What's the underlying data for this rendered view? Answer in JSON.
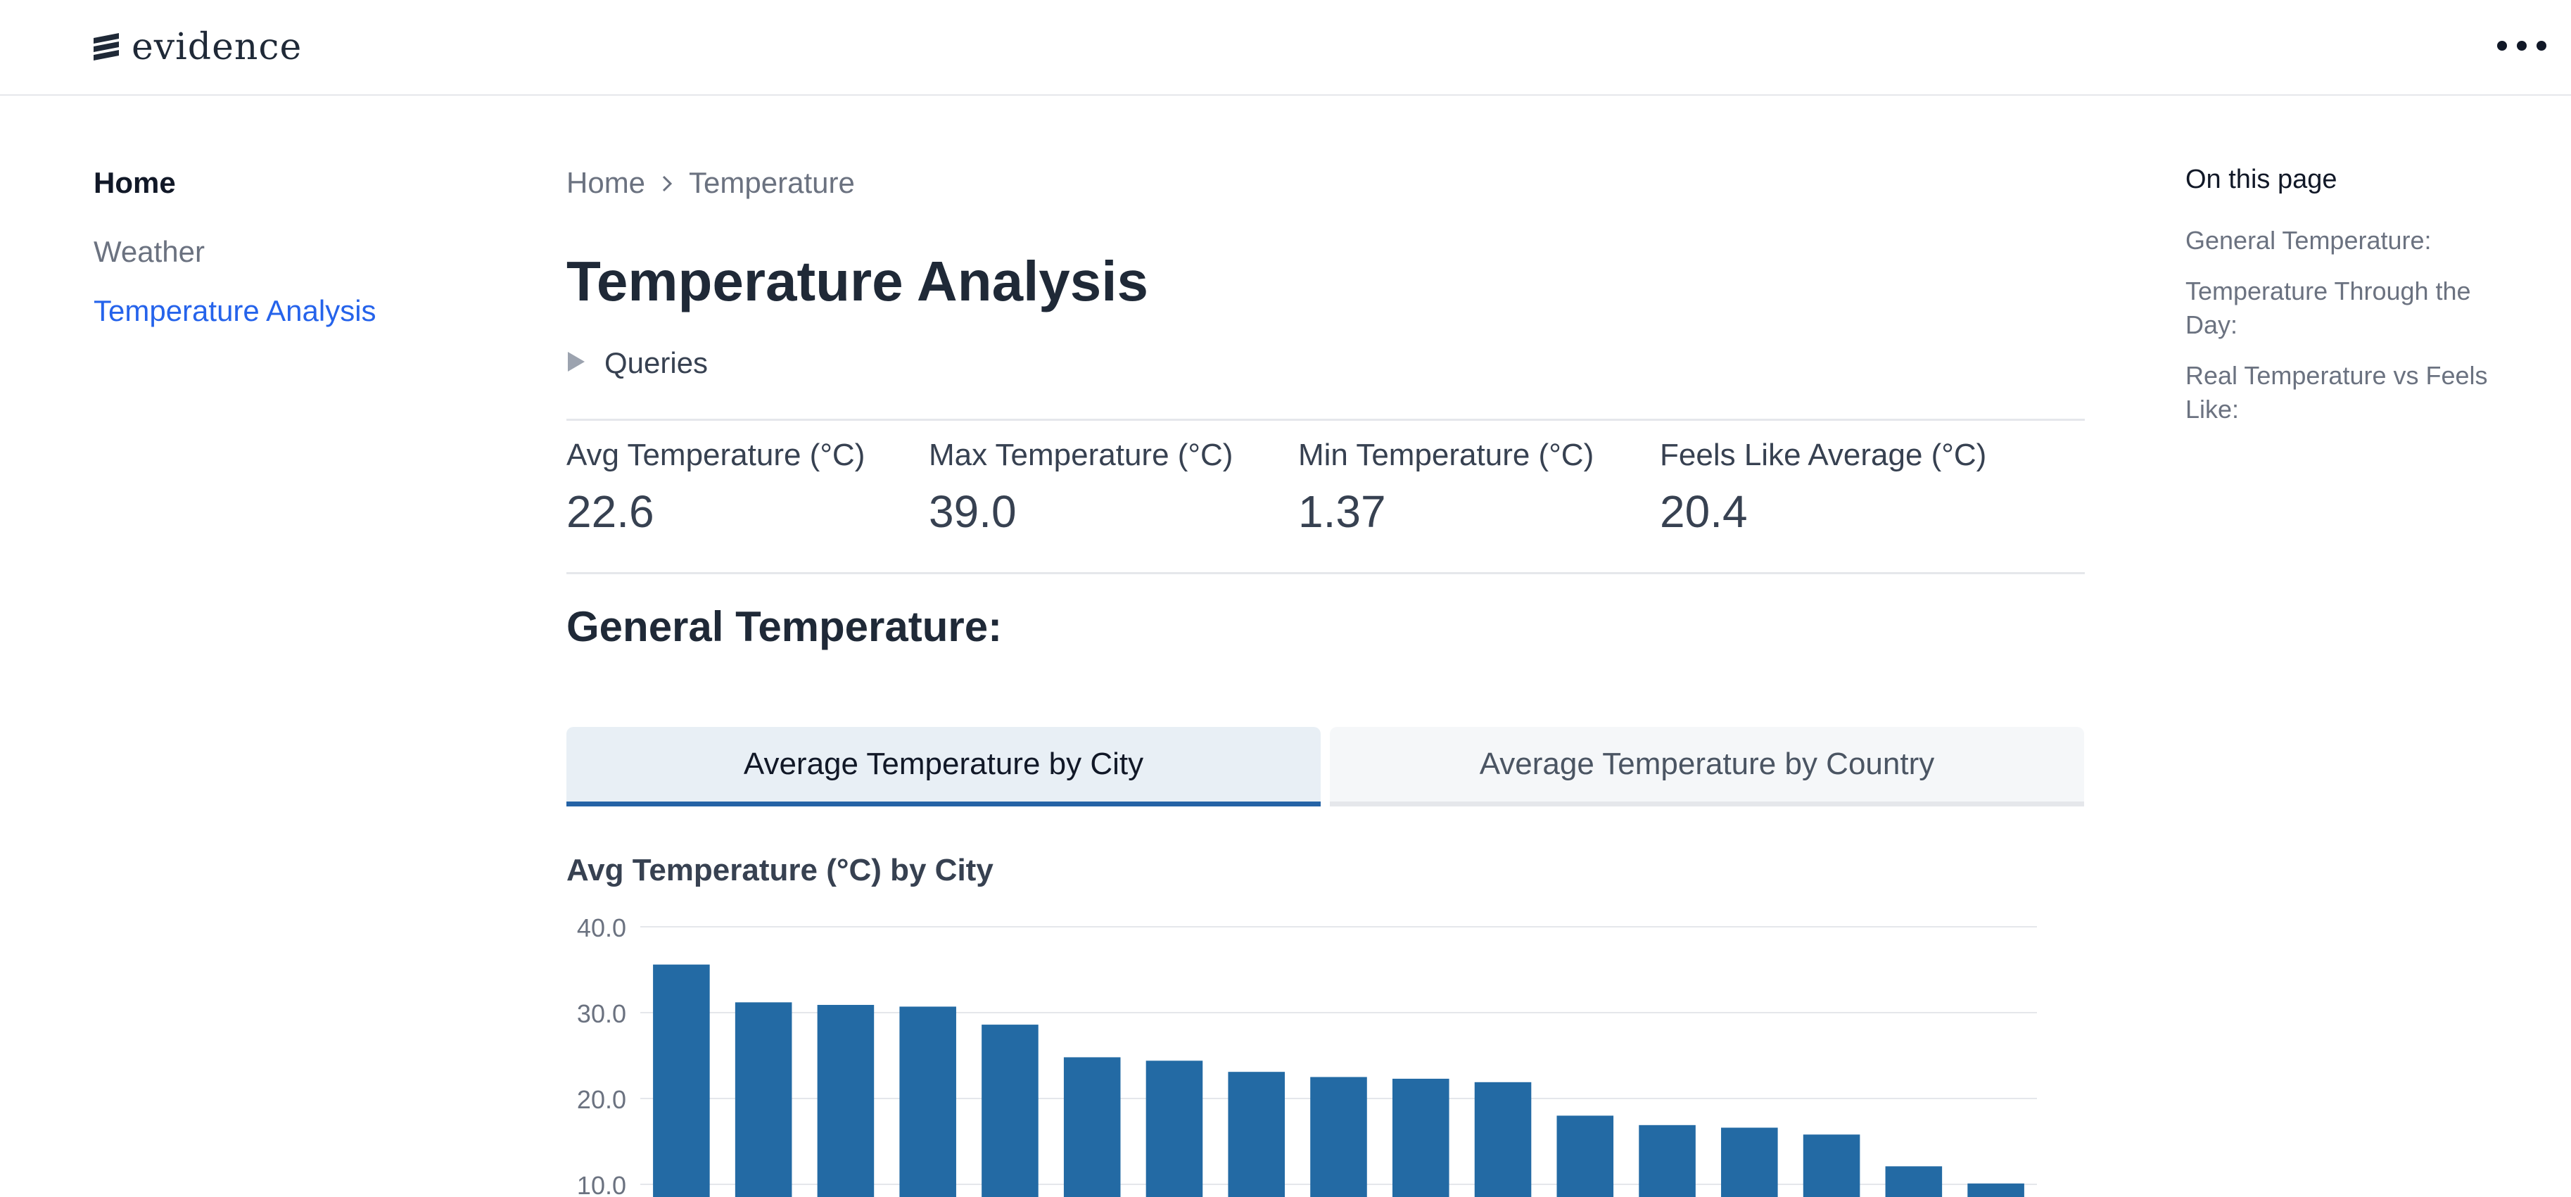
{
  "header": {
    "logo_text": "evidence",
    "logo_icon": "evidence-logo-icon",
    "menu_icon": "more-horizontal-icon"
  },
  "sidebar": {
    "items": [
      {
        "label": "Home"
      },
      {
        "label": "Weather"
      },
      {
        "label": "Temperature Analysis"
      }
    ]
  },
  "breadcrumb": {
    "items": [
      "Home",
      "Temperature"
    ],
    "separator_icon": "chevron-right-icon"
  },
  "page": {
    "title": "Temperature Analysis",
    "queries_label": "Queries",
    "section_title": "General Temperature:"
  },
  "kpis": [
    {
      "label": "Avg Temperature (°C)",
      "value": "22.6"
    },
    {
      "label": "Max Temperature (°C)",
      "value": "39.0"
    },
    {
      "label": "Min Temperature (°C)",
      "value": "1.37"
    },
    {
      "label": "Feels Like Average (°C)",
      "value": "20.4"
    }
  ],
  "tabs": [
    {
      "label": "Average Temperature by City",
      "active": true
    },
    {
      "label": "Average Temperature by Country",
      "active": false
    }
  ],
  "toc": {
    "title": "On this page",
    "items": [
      {
        "label": "General Temperature:"
      },
      {
        "label": "Temperature Through the Day:"
      },
      {
        "label": "Real Temperature vs Feels Like:"
      }
    ]
  },
  "colors": {
    "accent": "#2563eb",
    "bar": "#236aa4",
    "tab_active_border": "#2563a6"
  },
  "chart_data": {
    "type": "bar",
    "title": "Avg Temperature (°C) by City",
    "y_tick_labels": [
      "40.0",
      "30.0",
      "20.0",
      "10.0"
    ],
    "y_ticks": [
      40,
      30,
      20,
      10
    ],
    "values": [
      35.6,
      31.2,
      30.9,
      30.7,
      28.6,
      24.8,
      24.4,
      23.1,
      22.5,
      22.3,
      21.9,
      18.0,
      16.9,
      16.6,
      15.8,
      12.1,
      10.1
    ],
    "ylim": [
      0,
      40
    ],
    "grid": true
  }
}
